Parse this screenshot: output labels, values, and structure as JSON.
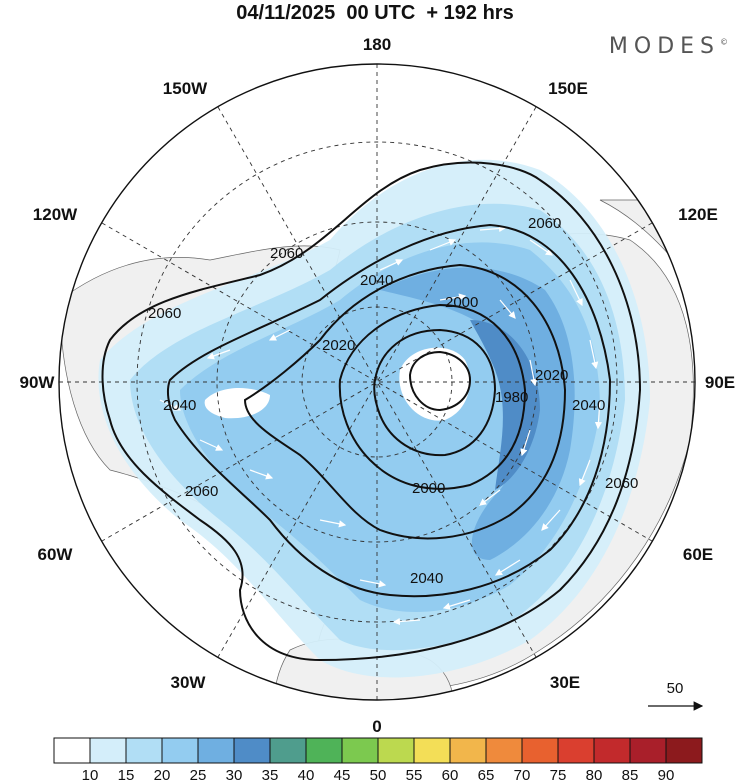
{
  "title": "04/11/2025  00 UTC  + 192 hrs",
  "brand": "MODES",
  "brand_mark": "©",
  "longitude_labels": {
    "n": "180",
    "s": "0",
    "w": "90W",
    "e": "90E",
    "nw1": "150W",
    "ne1": "150E",
    "nw2": "120W",
    "ne2": "120E",
    "sw1": "60W",
    "se1": "60E",
    "sw2": "30W",
    "se2": "30E"
  },
  "contour_labels": {
    "c2060a": "2060",
    "c2060b": "2060",
    "c2060c": "2060",
    "c2060d": "2060",
    "c2060e": "2060",
    "c2040a": "2040",
    "c2040b": "2040",
    "c2040c": "2040",
    "c2040d": "2040",
    "c2020a": "2020",
    "c2020b": "2020",
    "c2000a": "2000",
    "c2000b": "2000",
    "c1980": "1980"
  },
  "vector_legend": {
    "value": "50"
  },
  "colorbar": {
    "colors": [
      "#ffffff",
      "#d4eefa",
      "#b1def5",
      "#93ccf0",
      "#6fafe1",
      "#4f8cc7",
      "#4f9d8d",
      "#4fb358",
      "#7cc94f",
      "#bcd94f",
      "#f3de57",
      "#f2b64b",
      "#ef8a3c",
      "#e8612f",
      "#da3f2f",
      "#c22a2c",
      "#a91f2a",
      "#8c1a1d"
    ],
    "labels": [
      "10",
      "15",
      "20",
      "25",
      "30",
      "35",
      "40",
      "45",
      "50",
      "55",
      "60",
      "65",
      "70",
      "75",
      "80",
      "85",
      "90"
    ]
  }
}
